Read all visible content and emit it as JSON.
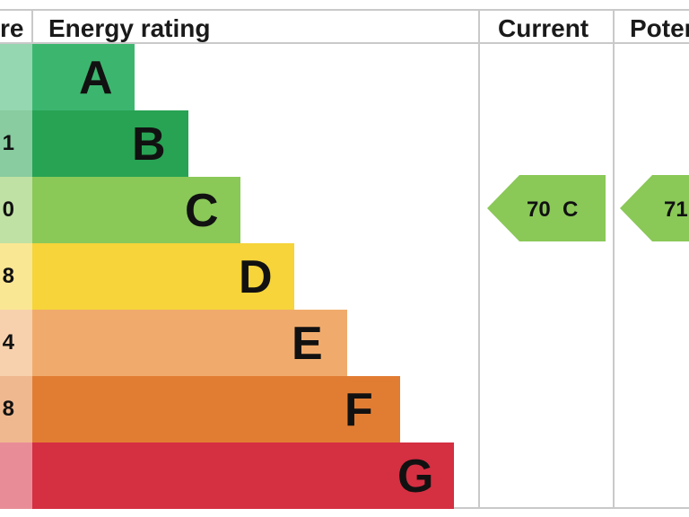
{
  "chart_data": {
    "type": "bar",
    "headers": {
      "score": "re",
      "rating": "Energy rating",
      "current": "Current",
      "potential": "Poter"
    },
    "bands": [
      {
        "letter": "A",
        "range_fragment": "",
        "color": "#3cb66f"
      },
      {
        "letter": "B",
        "range_fragment": "1",
        "color": "#27a353"
      },
      {
        "letter": "C",
        "range_fragment": "0",
        "color": "#8ac858"
      },
      {
        "letter": "D",
        "range_fragment": "8",
        "color": "#f6d43a"
      },
      {
        "letter": "E",
        "range_fragment": "4",
        "color": "#f0ab6c"
      },
      {
        "letter": "F",
        "range_fragment": "8",
        "color": "#e17d33"
      },
      {
        "letter": "G",
        "range_fragment": "",
        "color": "#d52f42"
      }
    ],
    "current": {
      "value": 70,
      "band": "C",
      "label": "70  C"
    },
    "potential": {
      "band": "C",
      "label": "71"
    }
  }
}
